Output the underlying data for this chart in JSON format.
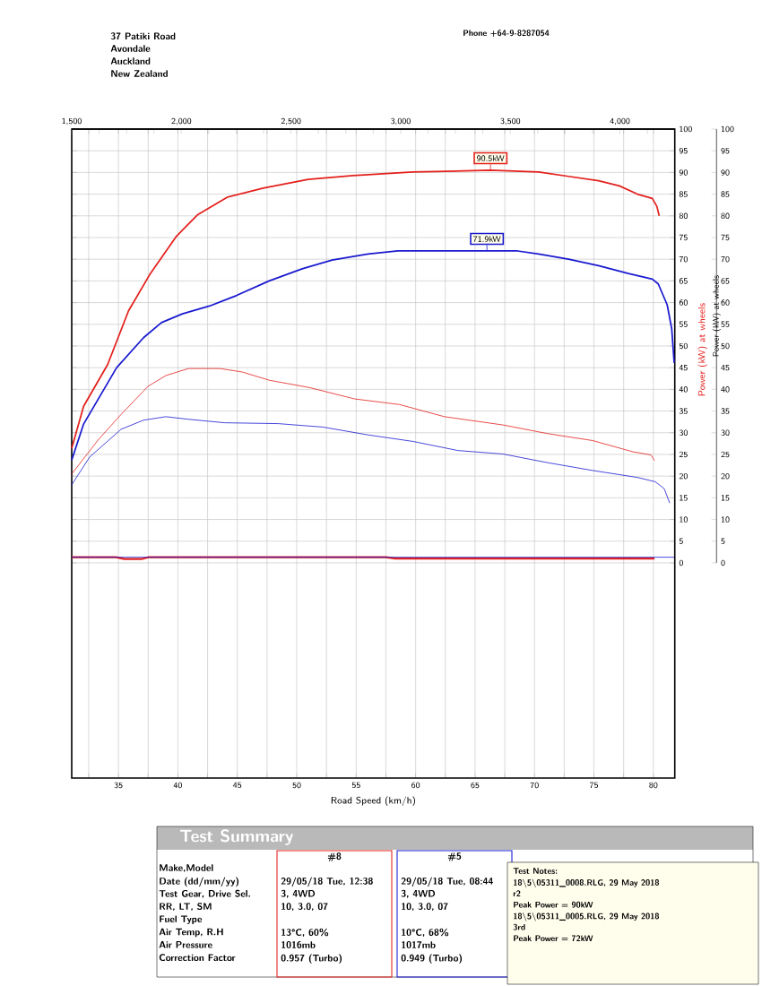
{
  "chart_data": {
    "type": "line",
    "xlabel": "Road Speed (km/h)",
    "ylabel": "Power (kW) at wheels",
    "y2label": "Power (kW) at wheels",
    "xlim": [
      31.07,
      81.8
    ],
    "ylim": [
      -49.6,
      100
    ],
    "y2lim": [
      0,
      100
    ],
    "x2lim": [
      1500,
      4250
    ],
    "xticks": [
      {
        "value": 32.5,
        "label": null
      },
      35,
      {
        "value": 37.5,
        "label": null
      },
      40,
      {
        "value": 42.5,
        "label": null
      },
      45,
      {
        "value": 47.5,
        "label": null
      },
      50,
      {
        "value": 52.5,
        "label": null
      },
      55,
      {
        "value": 57.5,
        "label": null
      },
      60,
      {
        "value": 62.5,
        "label": null
      },
      65,
      {
        "value": 67.5,
        "label": null
      },
      70,
      {
        "value": 72.5,
        "label": null
      },
      75,
      {
        "value": 77.5,
        "label": null
      },
      80
    ],
    "x2ticks": [
      {
        "value": 1500,
        "label": "1,500"
      },
      {
        "value": 1625,
        "label": null
      },
      {
        "value": 1750,
        "label": null
      },
      {
        "value": 1875,
        "label": null
      },
      {
        "value": 2000,
        "label": "2,000"
      },
      {
        "value": 2125,
        "label": null
      },
      {
        "value": 2250,
        "label": null
      },
      {
        "value": 2375,
        "label": null
      },
      {
        "value": 2500,
        "label": "2,500"
      },
      {
        "value": 2625,
        "label": null
      },
      {
        "value": 2750,
        "label": null
      },
      {
        "value": 2875,
        "label": null
      },
      {
        "value": 3000,
        "label": "3,000"
      },
      {
        "value": 3125,
        "label": null
      },
      {
        "value": 3250,
        "label": null
      },
      {
        "value": 3375,
        "label": null
      },
      {
        "value": 3500,
        "label": "3,500"
      },
      {
        "value": 3625,
        "label": null
      },
      {
        "value": 3750,
        "label": null
      },
      {
        "value": 3875,
        "label": null
      },
      {
        "value": 4000,
        "label": "4,000"
      },
      {
        "value": 4125,
        "label": null
      }
    ],
    "yticks": [
      0,
      5,
      10,
      15,
      20,
      25,
      30,
      35,
      40,
      45,
      50,
      55,
      60,
      65,
      70,
      75,
      80,
      85,
      90,
      95,
      100
    ],
    "y2ticks": [
      0,
      5,
      10,
      15,
      20,
      25,
      30,
      35,
      40,
      45,
      50,
      55,
      60,
      65,
      70,
      75,
      80,
      85,
      90,
      95,
      100
    ],
    "grid": true,
    "series": [
      {
        "color": "#e3201c",
        "x": [
          31.07,
          32.07,
          34.09,
          35.85,
          37.62,
          39.88,
          41.64,
          44.16,
          47.18,
          50.96,
          54.73,
          59.77,
          66.3,
          70.35,
          72.86,
          75.38,
          77.14,
          78.65,
          79.91,
          80.29,
          80.49
        ],
        "values": [
          26.4,
          36.1,
          45.7,
          58.1,
          66.4,
          75.3,
          80.2,
          84.3,
          86.4,
          88.4,
          89.3,
          90.1,
          90.5,
          90.1,
          89.1,
          88.1,
          86.9,
          85.0,
          84.0,
          82.2,
          80.0
        ]
      },
      {
        "color": "#1a1ad0",
        "x": [
          31.07,
          32.07,
          34.85,
          37.11,
          38.62,
          40.38,
          42.65,
          44.91,
          47.68,
          50.46,
          52.97,
          55.99,
          58.51,
          66.0,
          68.58,
          70.35,
          72.86,
          75.38,
          77.9,
          79.91,
          80.41,
          81.16,
          81.54,
          81.75
        ],
        "values": [
          23.7,
          32.0,
          45.0,
          51.9,
          55.4,
          57.4,
          59.2,
          61.6,
          65.0,
          67.8,
          69.8,
          71.2,
          71.9,
          71.9,
          71.9,
          71.2,
          70.0,
          68.5,
          66.7,
          65.4,
          64.3,
          59.5,
          54.0,
          46.1
        ]
      },
      {
        "color": "#e3201c",
        "x": [
          31.07,
          33.34,
          35.22,
          37.49,
          39.0,
          40.89,
          43.53,
          45.42,
          47.69,
          51.09,
          54.86,
          58.64,
          62.42,
          67.33,
          71.1,
          74.88,
          78.28,
          79.79,
          80.09
        ],
        "values": [
          20.5,
          28.5,
          34.2,
          40.7,
          43.2,
          44.8,
          44.8,
          44.0,
          42.1,
          40.4,
          37.8,
          36.5,
          33.7,
          31.8,
          29.8,
          28.2,
          25.6,
          24.9,
          23.6
        ]
      },
      {
        "color": "#1a1ad0",
        "x": [
          31.07,
          32.58,
          35.22,
          37.11,
          39.0,
          40.89,
          43.91,
          48.44,
          52.22,
          55.99,
          59.77,
          63.55,
          67.33,
          71.1,
          74.88,
          78.65,
          80.16,
          80.91,
          81.37
        ],
        "values": [
          18.0,
          24.4,
          30.8,
          32.9,
          33.7,
          33.1,
          32.3,
          32.1,
          31.3,
          29.5,
          28.0,
          25.9,
          25.1,
          23.1,
          21.3,
          19.7,
          18.7,
          17.1,
          13.8
        ]
      },
      {
        "color": "#e3201c",
        "x": [
          31.07,
          34.8,
          35.5,
          37.0,
          37.5,
          57.5,
          58.3,
          80.09
        ],
        "values": [
          1.3,
          1.3,
          0.9,
          0.9,
          1.3,
          1.3,
          1.0,
          1.0
        ]
      },
      {
        "color": "#1a1ad0",
        "x": [
          31.07,
          81.75
        ],
        "values": [
          1.3,
          1.3
        ]
      }
    ],
    "annotations": [
      {
        "text": "90.5kW",
        "x": 66.3,
        "y": 90.5
      },
      {
        "text": "71.9kW",
        "x": 66.0,
        "y": 71.9
      },
      "37 Patiki Road",
      "Avondale",
      "Auckland",
      "New Zealand",
      "Phone +64-9-8287054",
      "Test Summary",
      "Make,Model",
      "Date (dd/mm/yy)",
      "Test Gear, Drive Sel.",
      "RR, LT, SM",
      "Fuel Type",
      "Air Temp, R.H",
      "Air Pressure",
      "Correction Factor",
      "#8",
      "29/05/18 Tue, 12:38",
      "3, 4WD",
      "10,   3.0,   07",
      "13°C,   60%",
      "1016mb",
      "0.957 (Turbo)",
      "#5",
      "29/05/18 Tue, 08:44",
      "3, 4WD",
      "10,   3.0,   07",
      "10°C,   68%",
      "1017mb",
      "0.949 (Turbo)",
      "Test Notes:",
      "18\\5\\05311_0008.RLG, 29 May 2018",
      "r2",
      "Peak Power = 90kW",
      "18\\5\\05311_0005.RLG, 29 May 2018",
      "3rd",
      "Peak Power = 72kW"
    ]
  }
}
